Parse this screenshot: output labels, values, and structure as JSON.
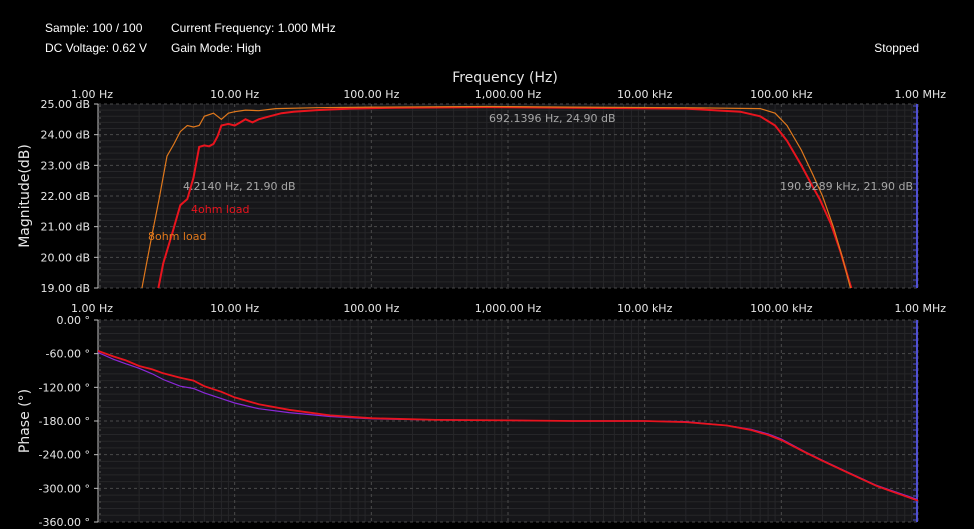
{
  "status": {
    "sample": "Sample: 100 / 100",
    "current_frequency": "Current Frequency: 1.000 MHz",
    "dc_voltage": "DC Voltage: 0.62 V",
    "gain_mode": "Gain Mode: High",
    "state": "Stopped"
  },
  "colors": {
    "background": "#000000",
    "plot_bg": "#161619",
    "grid": "#4a4a4a",
    "text": "#e6e6e6",
    "annotation": "#a6a6a6",
    "series_4ohm": "#e8141e",
    "series_8ohm": "#e0781c",
    "series_phase_8ohm": "#8a28d8",
    "cursor": "#5050d0"
  },
  "chart_data": [
    {
      "type": "line",
      "title": "Frequency (Hz)",
      "xlabel": "",
      "ylabel": "Magnitude(dB)",
      "xscale": "log",
      "xlim": [
        1,
        1000000
      ],
      "ylim": [
        19,
        25
      ],
      "grid": true,
      "x_tick_labels": [
        "1.00 Hz",
        "10.00 Hz",
        "100.00 Hz",
        "1,000.00 Hz",
        "10.00 kHz",
        "100.00 kHz",
        "1.00 MHz"
      ],
      "y_ticks": [
        19,
        20,
        21,
        22,
        23,
        24,
        25
      ],
      "y_tick_labels": [
        "19.00 dB",
        "20.00 dB",
        "21.00 dB",
        "22.00 dB",
        "23.00 dB",
        "24.00 dB",
        "25.00 dB"
      ],
      "annotations": [
        {
          "text": "4.2140 Hz, 21.90 dB",
          "x": 4.214,
          "y": 21.9
        },
        {
          "text": "692.1396 Hz, 24.90 dB",
          "x": 692.14,
          "y": 24.9
        },
        {
          "text": "190.9289 kHz, 21.90 dB",
          "x": 190928.9,
          "y": 21.9
        }
      ],
      "series_labels": [
        "4ohm load",
        "8ohm load"
      ],
      "series": [
        {
          "name": "4ohm load",
          "color": "#e8141e",
          "points": [
            [
              2.5,
              18.0
            ],
            [
              3.0,
              19.8
            ],
            [
              3.5,
              20.8
            ],
            [
              4.0,
              21.7
            ],
            [
              4.5,
              21.9
            ],
            [
              5.0,
              22.6
            ],
            [
              5.5,
              23.6
            ],
            [
              6.0,
              23.65
            ],
            [
              6.5,
              23.62
            ],
            [
              7.0,
              23.7
            ],
            [
              7.5,
              23.95
            ],
            [
              8.0,
              24.3
            ],
            [
              9.0,
              24.35
            ],
            [
              10.0,
              24.3
            ],
            [
              11.0,
              24.4
            ],
            [
              12.0,
              24.5
            ],
            [
              13.5,
              24.4
            ],
            [
              15.0,
              24.5
            ],
            [
              18.0,
              24.6
            ],
            [
              22.0,
              24.7
            ],
            [
              27.0,
              24.75
            ],
            [
              40.0,
              24.8
            ],
            [
              70.0,
              24.85
            ],
            [
              150.0,
              24.88
            ],
            [
              700.0,
              24.9
            ],
            [
              3000.0,
              24.88
            ],
            [
              20000.0,
              24.85
            ],
            [
              50000.0,
              24.75
            ],
            [
              70000.0,
              24.6
            ],
            [
              90000.0,
              24.3
            ],
            [
              110000.0,
              23.8
            ],
            [
              140000.0,
              23.0
            ],
            [
              170000.0,
              22.3
            ],
            [
              190929.0,
              21.9
            ],
            [
              230000.0,
              21.1
            ],
            [
              270000.0,
              20.2
            ],
            [
              310000.0,
              19.3
            ],
            [
              330000.0,
              18.9
            ]
          ]
        },
        {
          "name": "8ohm load",
          "color": "#e0781c",
          "points": [
            [
              2.0,
              18.5
            ],
            [
              2.2,
              19.5
            ],
            [
              2.5,
              20.8
            ],
            [
              2.8,
              21.9
            ],
            [
              3.2,
              23.3
            ],
            [
              3.6,
              23.7
            ],
            [
              4.0,
              24.1
            ],
            [
              4.5,
              24.3
            ],
            [
              5.0,
              24.25
            ],
            [
              5.5,
              24.3
            ],
            [
              6.0,
              24.6
            ],
            [
              7.0,
              24.7
            ],
            [
              8.0,
              24.5
            ],
            [
              9.0,
              24.7
            ],
            [
              10.0,
              24.75
            ],
            [
              12.0,
              24.8
            ],
            [
              15.0,
              24.78
            ],
            [
              20.0,
              24.85
            ],
            [
              40.0,
              24.88
            ],
            [
              100.0,
              24.9
            ],
            [
              700.0,
              24.92
            ],
            [
              3000.0,
              24.9
            ],
            [
              20000.0,
              24.88
            ],
            [
              70000.0,
              24.85
            ],
            [
              90000.0,
              24.7
            ],
            [
              110000.0,
              24.3
            ],
            [
              140000.0,
              23.5
            ],
            [
              170000.0,
              22.7
            ],
            [
              200000.0,
              22.0
            ],
            [
              240000.0,
              21.0
            ],
            [
              280000.0,
              20.0
            ],
            [
              320000.0,
              19.0
            ]
          ]
        }
      ]
    },
    {
      "type": "line",
      "title": "",
      "xlabel": "",
      "ylabel": "Phase (°)",
      "xscale": "log",
      "xlim": [
        1,
        1000000
      ],
      "ylim": [
        -360,
        0
      ],
      "grid": true,
      "x_tick_labels": [
        "1.00 Hz",
        "10.00 Hz",
        "100.00 Hz",
        "1,000.00 Hz",
        "10.00 kHz",
        "100.00 kHz",
        "1.00 MHz"
      ],
      "y_ticks": [
        0,
        -60,
        -120,
        -180,
        -240,
        -300,
        -360
      ],
      "y_tick_labels": [
        "0.00 °",
        "-60.00 °",
        "-120.00 °",
        "-180.00 °",
        "-240.00 °",
        "-300.00 °",
        "-360.00 °"
      ],
      "series": [
        {
          "color": "#8a28d8",
          "points": [
            [
              1.0,
              -58
            ],
            [
              1.3,
              -70
            ],
            [
              1.6,
              -78
            ],
            [
              2.0,
              -86
            ],
            [
              2.5,
              -96
            ],
            [
              3.0,
              -106
            ],
            [
              4.0,
              -118
            ],
            [
              5.0,
              -122
            ],
            [
              6.0,
              -130
            ],
            [
              8.0,
              -140
            ],
            [
              10.0,
              -148
            ],
            [
              15.0,
              -158
            ],
            [
              25.0,
              -165
            ],
            [
              50.0,
              -172
            ],
            [
              100.0,
              -176
            ],
            [
              300.0,
              -178
            ],
            [
              1000.0,
              -179
            ],
            [
              3000.0,
              -180
            ],
            [
              10000.0,
              -180
            ],
            [
              20000.0,
              -181
            ],
            [
              40000.0,
              -188
            ],
            [
              60000.0,
              -195
            ],
            [
              80000.0,
              -203
            ],
            [
              100000.0,
              -212
            ],
            [
              150000.0,
              -235
            ],
            [
              200000.0,
              -250
            ],
            [
              300000.0,
              -270
            ],
            [
              500000.0,
              -295
            ],
            [
              1000000.0,
              -320
            ]
          ]
        },
        {
          "color": "#e8141e",
          "points": [
            [
              1.0,
              -55
            ],
            [
              1.3,
              -65
            ],
            [
              1.6,
              -72
            ],
            [
              2.0,
              -82
            ],
            [
              2.5,
              -88
            ],
            [
              3.0,
              -95
            ],
            [
              4.0,
              -103
            ],
            [
              5.0,
              -108
            ],
            [
              6.0,
              -118
            ],
            [
              8.0,
              -128
            ],
            [
              10.0,
              -138
            ],
            [
              15.0,
              -150
            ],
            [
              25.0,
              -160
            ],
            [
              50.0,
              -170
            ],
            [
              100.0,
              -175
            ],
            [
              300.0,
              -178
            ],
            [
              1000.0,
              -179
            ],
            [
              3000.0,
              -180
            ],
            [
              10000.0,
              -180
            ],
            [
              20000.0,
              -182
            ],
            [
              40000.0,
              -188
            ],
            [
              60000.0,
              -196
            ],
            [
              80000.0,
              -205
            ],
            [
              100000.0,
              -214
            ],
            [
              150000.0,
              -236
            ],
            [
              200000.0,
              -251
            ],
            [
              300000.0,
              -271
            ],
            [
              500000.0,
              -296
            ],
            [
              1000000.0,
              -322
            ]
          ]
        }
      ]
    }
  ]
}
